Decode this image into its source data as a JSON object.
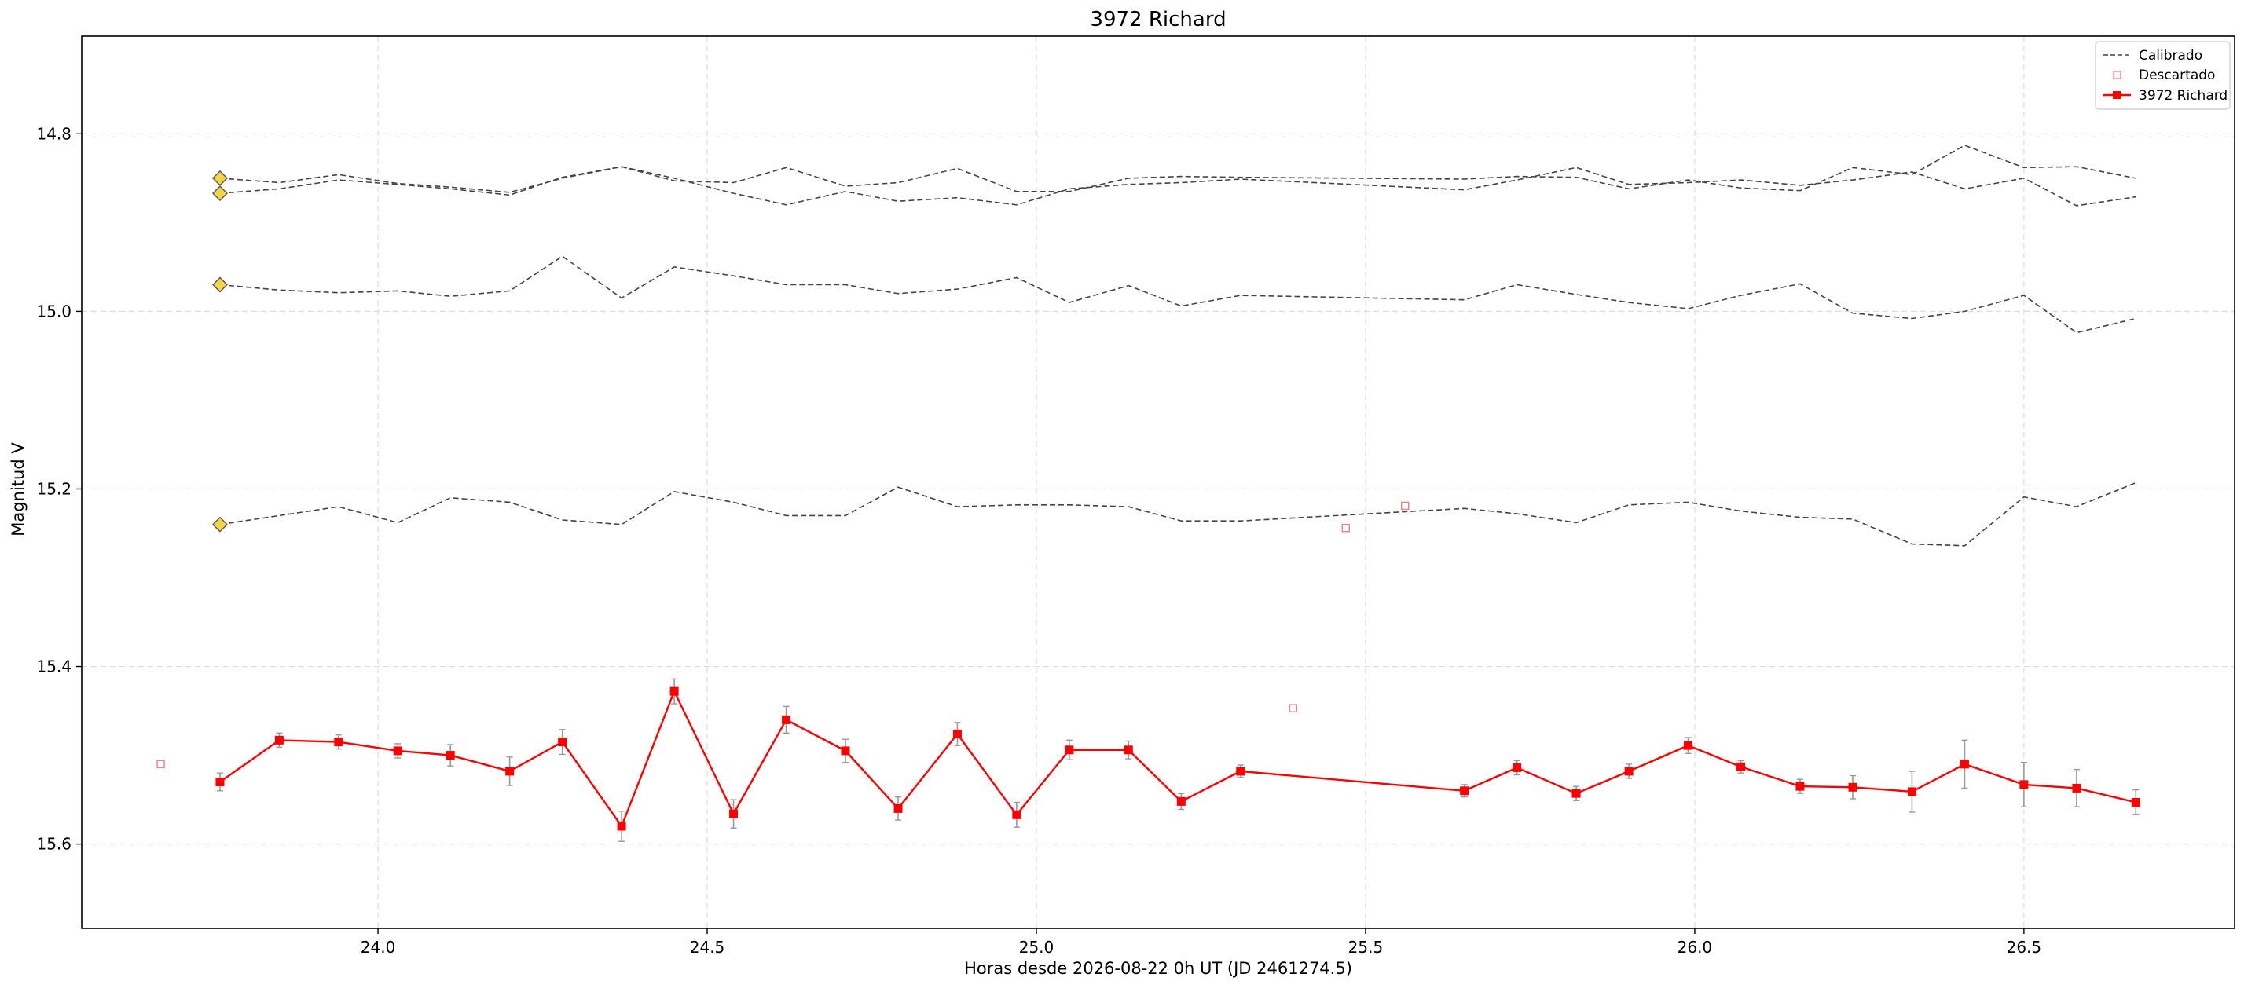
{
  "chart_data": {
    "type": "line",
    "title": "3972 Richard",
    "xlabel": "Horas desde 2026-08-22 0h UT (JD 2461274.5)",
    "ylabel": "Magnitud V",
    "xlim": [
      23.55,
      26.82
    ],
    "ylim": [
      15.695,
      14.69
    ],
    "y_inverted": true,
    "grid": true,
    "legend_position": "top-right",
    "x_ticks": [
      24.0,
      24.5,
      25.0,
      25.5,
      26.0,
      26.5
    ],
    "x_tick_labels": [
      "24.0",
      "24.5",
      "25.0",
      "25.5",
      "26.0",
      "26.5"
    ],
    "y_ticks": [
      14.8,
      15.0,
      15.2,
      15.4,
      15.6
    ],
    "y_tick_labels": [
      "14.8",
      "15.0",
      "15.2",
      "15.4",
      "15.6"
    ],
    "legend": [
      "Calibrado",
      "Descartado",
      "3972 Richard"
    ],
    "colors": {
      "target": "#ff0000",
      "calibrated": "#444444",
      "discarded": "#f08080",
      "marker_yellow": "#f5d547",
      "errorbar": "#999999",
      "grid": "#dddddd"
    },
    "x": [
      23.76,
      23.85,
      23.94,
      24.03,
      24.11,
      24.2,
      24.28,
      24.37,
      24.45,
      24.54,
      24.62,
      24.71,
      24.79,
      24.88,
      24.97,
      25.05,
      25.14,
      25.22,
      25.31,
      25.65,
      25.73,
      25.82,
      25.9,
      25.99,
      26.07,
      26.16,
      26.24,
      26.33,
      26.41,
      26.5,
      26.58,
      26.67
    ],
    "series": [
      {
        "name": "3972 Richard",
        "role": "target",
        "values": [
          15.53,
          15.483,
          15.485,
          15.495,
          15.5,
          15.518,
          15.485,
          15.58,
          15.428,
          15.566,
          15.46,
          15.495,
          15.56,
          15.476,
          15.567,
          15.494,
          15.494,
          15.552,
          15.518,
          15.54,
          15.514,
          15.543,
          15.518,
          15.489,
          15.513,
          15.535,
          15.536,
          15.541,
          15.51,
          15.533,
          15.537,
          15.553
        ],
        "errors": [
          0.01,
          0.008,
          0.008,
          0.008,
          0.012,
          0.016,
          0.014,
          0.017,
          0.014,
          0.016,
          0.015,
          0.013,
          0.013,
          0.013,
          0.014,
          0.011,
          0.01,
          0.009,
          0.007,
          0.007,
          0.008,
          0.008,
          0.008,
          0.009,
          0.007,
          0.008,
          0.013,
          0.023,
          0.027,
          0.025,
          0.021,
          0.014
        ]
      },
      {
        "role": "calibrated",
        "values": [
          14.85,
          14.855,
          14.846,
          14.856,
          14.86,
          14.866,
          14.85,
          14.837,
          14.85,
          14.867,
          14.88,
          14.865,
          14.876,
          14.872,
          14.88,
          14.862,
          14.857,
          14.855,
          14.851,
          14.863,
          14.852,
          14.838,
          14.857,
          14.855,
          14.852,
          14.858,
          14.852,
          14.843,
          14.862,
          14.85,
          14.881,
          14.871
        ]
      },
      {
        "role": "calibrated",
        "values": [
          14.867,
          14.862,
          14.852,
          14.857,
          14.862,
          14.869,
          14.849,
          14.837,
          14.853,
          14.855,
          14.838,
          14.859,
          14.855,
          14.839,
          14.865,
          14.865,
          14.85,
          14.848,
          14.849,
          14.851,
          14.848,
          14.849,
          14.862,
          14.852,
          14.861,
          14.864,
          14.838,
          14.846,
          14.813,
          14.838,
          14.837,
          14.85
        ]
      },
      {
        "role": "calibrated",
        "values": [
          14.97,
          14.976,
          14.979,
          14.977,
          14.983,
          14.977,
          14.938,
          14.985,
          14.95,
          14.96,
          14.97,
          14.97,
          14.98,
          14.975,
          14.962,
          14.99,
          14.971,
          14.994,
          14.982,
          14.987,
          14.97,
          14.981,
          14.99,
          14.997,
          14.982,
          14.969,
          15.002,
          15.008,
          15.0,
          14.982,
          15.024,
          15.008
        ]
      },
      {
        "role": "calibrated",
        "values": [
          15.24,
          15.23,
          15.22,
          15.238,
          15.21,
          15.215,
          15.235,
          15.24,
          15.203,
          15.215,
          15.23,
          15.23,
          15.198,
          15.22,
          15.218,
          15.218,
          15.22,
          15.236,
          15.236,
          15.222,
          15.228,
          15.238,
          15.218,
          15.215,
          15.225,
          15.232,
          15.234,
          15.262,
          15.264,
          15.209,
          15.22,
          15.193
        ]
      }
    ],
    "discarded": {
      "x": [
        23.67,
        25.39,
        25.47,
        25.56
      ],
      "y": [
        15.51,
        15.447,
        15.244,
        15.219
      ]
    },
    "yellow_markers": {
      "x": [
        23.76,
        23.76,
        23.76,
        23.76
      ],
      "y": [
        14.85,
        14.867,
        14.97,
        15.24
      ]
    }
  }
}
